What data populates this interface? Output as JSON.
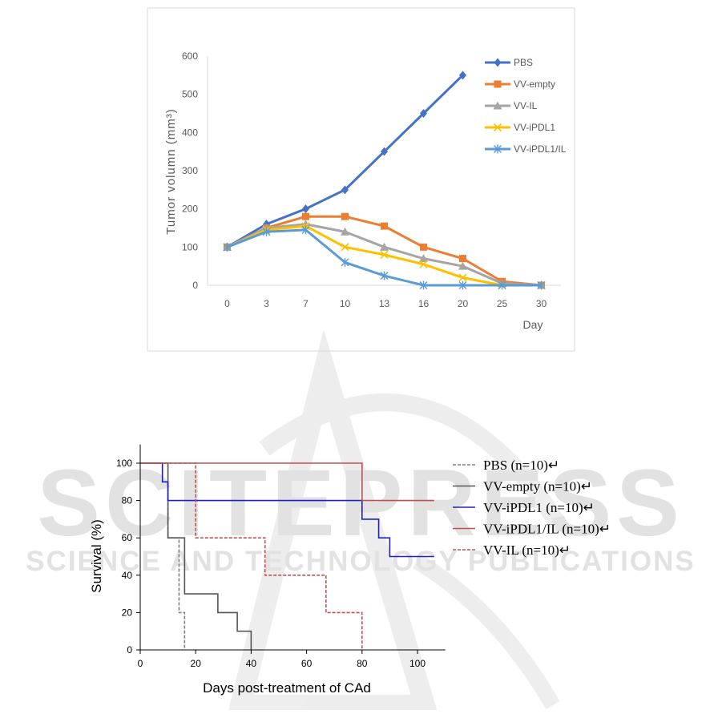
{
  "colors": {
    "pbs": "#4472C4",
    "vv_empty": "#ED7D31",
    "vv_il": "#A5A5A5",
    "vv_ipdl1": "#FFC000",
    "vv_ipdl1_il": "#5B9BD5",
    "km_pbs": "#808080",
    "km_vv_empty": "#555555",
    "km_vv_ipdl1": "#2020C0",
    "km_vv_ipdl1_il": "#C0504D",
    "km_vv_il": "#C0504D",
    "watermark": "#d9d9d9"
  },
  "watermark": {
    "text_main": "SCITEPRESS",
    "text_sub": "SCIENCE AND TECHNOLOGY PUBLICATIONS"
  },
  "chart_data": [
    {
      "type": "line",
      "title": "",
      "xlabel": "Day",
      "ylabel": "Tumor volumn  (mm³)",
      "categories": [
        "0",
        "3",
        "7",
        "10",
        "13",
        "16",
        "20",
        "25",
        "30"
      ],
      "ylim": [
        0,
        600
      ],
      "yticks": [
        "0",
        "100",
        "200",
        "300",
        "400",
        "500",
        "600"
      ],
      "grid": false,
      "legend_position": "top-right",
      "series": [
        {
          "name": "PBS",
          "marker": "diamond",
          "color_key": "pbs",
          "values": [
            100,
            160,
            200,
            250,
            350,
            450,
            550,
            null,
            null
          ]
        },
        {
          "name": "VV-empty",
          "marker": "square",
          "color_key": "vv_empty",
          "values": [
            100,
            150,
            180,
            180,
            155,
            100,
            70,
            10,
            0
          ]
        },
        {
          "name": "VV-IL",
          "marker": "triangle",
          "color_key": "vv_il",
          "values": [
            100,
            150,
            160,
            140,
            100,
            70,
            50,
            5,
            0
          ]
        },
        {
          "name": "VV-iPDL1",
          "marker": "x",
          "color_key": "vv_ipdl1",
          "values": [
            100,
            145,
            155,
            100,
            80,
            55,
            20,
            0,
            0
          ]
        },
        {
          "name": "VV-iPDL1/IL",
          "marker": "asterisk",
          "color_key": "vv_ipdl1_il",
          "values": [
            100,
            140,
            145,
            60,
            25,
            0,
            0,
            0,
            0
          ]
        }
      ]
    },
    {
      "type": "line",
      "subtype": "step",
      "title": "",
      "xlabel": "Days post-treatment of CAd",
      "ylabel": "Survival (%)",
      "xlim": [
        0,
        110
      ],
      "ylim": [
        0,
        110
      ],
      "xticks": [
        "0",
        "20",
        "40",
        "60",
        "80",
        "100"
      ],
      "yticks": [
        "0",
        "20",
        "40",
        "60",
        "80",
        "100"
      ],
      "grid": false,
      "legend_position": "right",
      "series": [
        {
          "name": "PBS (n=10)↵",
          "color_key": "km_pbs",
          "dash": "dashed",
          "points": [
            [
              0,
              100
            ],
            [
              8,
              100
            ],
            [
              8,
              90
            ],
            [
              10,
              90
            ],
            [
              10,
              60
            ],
            [
              14,
              60
            ],
            [
              14,
              20
            ],
            [
              16,
              20
            ],
            [
              16,
              0
            ]
          ]
        },
        {
          "name": "VV-empty (n=10)↵",
          "color_key": "km_vv_empty",
          "dash": "solid",
          "points": [
            [
              0,
              100
            ],
            [
              10,
              100
            ],
            [
              10,
              60
            ],
            [
              16,
              60
            ],
            [
              16,
              30
            ],
            [
              28,
              30
            ],
            [
              28,
              20
            ],
            [
              35,
              20
            ],
            [
              35,
              10
            ],
            [
              40,
              10
            ],
            [
              40,
              0
            ]
          ]
        },
        {
          "name": "VV-iPDL1 (n=10)↵",
          "color_key": "km_vv_ipdl1",
          "dash": "solid",
          "points": [
            [
              0,
              100
            ],
            [
              8,
              100
            ],
            [
              8,
              90
            ],
            [
              10,
              90
            ],
            [
              10,
              80
            ],
            [
              80,
              80
            ],
            [
              80,
              70
            ],
            [
              86,
              70
            ],
            [
              86,
              60
            ],
            [
              90,
              60
            ],
            [
              90,
              50
            ],
            [
              106,
              50
            ]
          ]
        },
        {
          "name": "VV-iPDL1/IL (n=10)↵",
          "color_key": "km_vv_ipdl1_il",
          "dash": "solid",
          "points": [
            [
              0,
              100
            ],
            [
              80,
              100
            ],
            [
              80,
              80
            ],
            [
              106,
              80
            ]
          ]
        },
        {
          "name": "VV-IL (n=10)↵",
          "color_key": "km_vv_il",
          "dash": "dashed",
          "points": [
            [
              0,
              100
            ],
            [
              20,
              100
            ],
            [
              20,
              60
            ],
            [
              45,
              60
            ],
            [
              45,
              40
            ],
            [
              67,
              40
            ],
            [
              67,
              20
            ],
            [
              80,
              20
            ],
            [
              80,
              0
            ]
          ]
        }
      ]
    }
  ]
}
